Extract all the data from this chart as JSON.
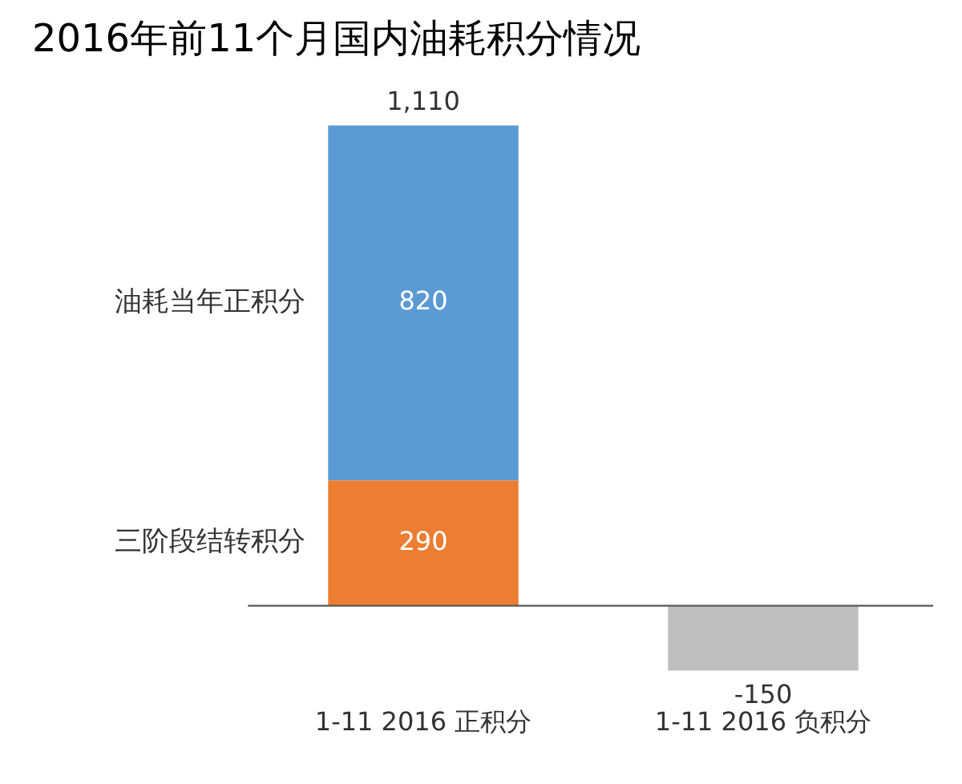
{
  "chart_data": {
    "type": "bar",
    "title": "2016年前11个月国内油耗积分情况",
    "categories": [
      "1-11 2016 正积分",
      "1-11 2016 负积分"
    ],
    "stacked": true,
    "data_labels": true,
    "totals": [
      "1,110",
      null
    ],
    "grid": false,
    "legend": false,
    "series": [
      {
        "name": "三阶段结转积分",
        "color": "#ed7d31",
        "values": [
          290,
          null
        ]
      },
      {
        "name": "油耗当年正积分",
        "color": "#5b9bd5",
        "values": [
          820,
          null
        ]
      },
      {
        "color": "#bfbfbf",
        "values": [
          null,
          -150
        ]
      }
    ]
  }
}
